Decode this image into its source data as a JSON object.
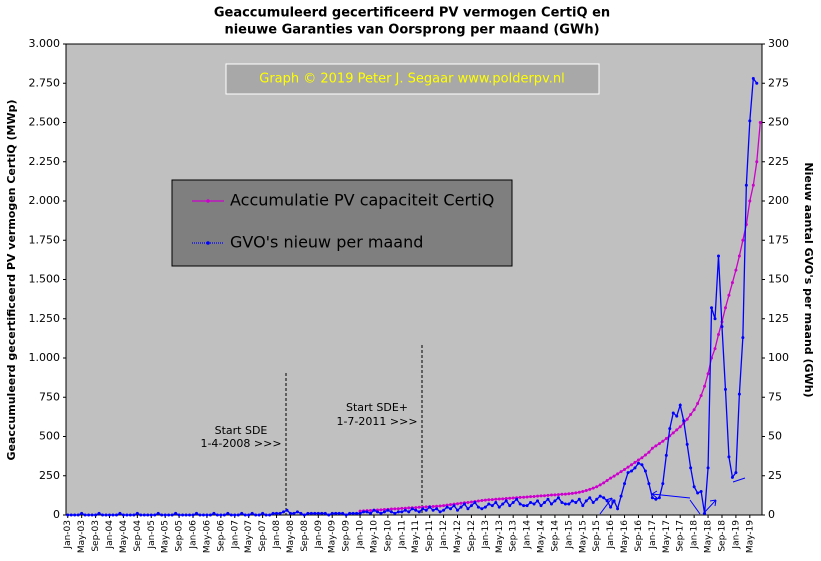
{
  "chart_data": {
    "type": "line",
    "title": "Geaccumuleerd gecertificeerd PV vermogen CertiQ en",
    "subtitle": "nieuwe Garanties van Oorsprong per maand (GWh)",
    "ylabel": "Geaccumuleerd gecertificeerd PV vermogen CertiQ (MWp)",
    "y2label": "Nieuw aantal GVO's per maand (GWh)",
    "credit": "Graph  © 2019  Peter J. Segaar   www.polderpv.nl",
    "annotations": [
      "Start SDE",
      "1-4-2008  >>>",
      "Start SDE+",
      "1-7-2011  >>>"
    ],
    "categories": [
      "Jan-03",
      null,
      null,
      null,
      "May-03",
      null,
      null,
      null,
      "Sep-03",
      null,
      null,
      null,
      "Jan-04",
      null,
      null,
      null,
      "May-04",
      null,
      null,
      null,
      "Sep-04",
      null,
      null,
      null,
      "Jan-05",
      null,
      null,
      null,
      "May-05",
      null,
      null,
      null,
      "Sep-05",
      null,
      null,
      null,
      "Jan-06",
      null,
      null,
      null,
      "May-06",
      null,
      null,
      null,
      "Sep-06",
      null,
      null,
      null,
      "Jan-07",
      null,
      null,
      null,
      "May-07",
      null,
      null,
      null,
      "Sep-07",
      null,
      null,
      null,
      "Jan-08",
      null,
      null,
      null,
      "May-08",
      null,
      null,
      null,
      "Sep-08",
      null,
      null,
      null,
      "Jan-09",
      null,
      null,
      null,
      "May-09",
      null,
      null,
      null,
      "Sep-09",
      null,
      null,
      null,
      "Jan-10",
      null,
      null,
      null,
      "May-10",
      null,
      null,
      null,
      "Sep-10",
      null,
      null,
      null,
      "Jan-11",
      null,
      null,
      null,
      "May-11",
      null,
      null,
      null,
      "Sep-11",
      null,
      null,
      null,
      "Jan-12",
      null,
      null,
      null,
      "May-12",
      null,
      null,
      null,
      "Sep-12",
      null,
      null,
      null,
      "Jan-13",
      null,
      null,
      null,
      "May-13",
      null,
      null,
      null,
      "Sep-13",
      null,
      null,
      null,
      "Jan-14",
      null,
      null,
      null,
      "May-14",
      null,
      null,
      null,
      "Sep-14",
      null,
      null,
      null,
      "Jan-15",
      null,
      null,
      null,
      "May-15",
      null,
      null,
      null,
      "Sep-15",
      null,
      null,
      null,
      "Jan-16",
      null,
      null,
      null,
      "May-16",
      null,
      null,
      null,
      "Sep-16",
      null,
      null,
      null,
      "Jan-17",
      null,
      null,
      null,
      "May-17",
      null,
      null,
      null,
      "Sep-17",
      null,
      null,
      null,
      "Jan-18",
      null,
      null,
      null,
      "May-18",
      null,
      null,
      null,
      "Sep-18",
      null,
      null,
      null,
      "Jan-19",
      null,
      null,
      null,
      "May-19",
      null,
      null,
      null
    ],
    "series": [
      {
        "name": "Accumulatie PV capaciteit CertiQ",
        "color": "#cc00cc",
        "values": [
          null,
          null,
          null,
          null,
          null,
          null,
          null,
          null,
          null,
          null,
          null,
          null,
          null,
          null,
          null,
          null,
          null,
          null,
          null,
          null,
          null,
          null,
          null,
          null,
          null,
          null,
          null,
          null,
          null,
          null,
          null,
          null,
          null,
          null,
          null,
          null,
          null,
          null,
          null,
          null,
          null,
          null,
          null,
          null,
          null,
          null,
          null,
          null,
          null,
          null,
          null,
          null,
          null,
          null,
          null,
          null,
          null,
          null,
          null,
          null,
          null,
          null,
          null,
          null,
          null,
          null,
          null,
          null,
          null,
          null,
          null,
          null,
          null,
          null,
          null,
          null,
          null,
          null,
          null,
          null,
          null,
          null,
          null,
          null,
          25,
          26,
          28,
          29,
          31,
          32,
          33,
          35,
          36,
          38,
          39,
          40,
          42,
          43,
          45,
          46,
          47,
          49,
          50,
          52,
          53,
          54,
          56,
          57,
          60,
          63,
          66,
          69,
          72,
          75,
          78,
          80,
          83,
          86,
          89,
          92,
          95,
          97,
          98,
          100,
          102,
          103,
          105,
          107,
          108,
          110,
          112,
          113,
          115,
          117,
          118,
          120,
          122,
          123,
          125,
          127,
          128,
          130,
          132,
          133,
          135,
          138,
          141,
          145,
          150,
          156,
          163,
          171,
          180,
          192,
          205,
          220,
          235,
          248,
          262,
          276,
          290,
          305,
          320,
          335,
          350,
          365,
          382,
          400,
          425,
          440,
          455,
          470,
          487,
          505,
          523,
          542,
          562,
          585,
          610,
          640,
          670,
          710,
          760,
          820,
          900,
          1000,
          1060,
          1150,
          1230,
          1320,
          1400,
          1480,
          1560,
          1650,
          1750,
          1850,
          2000,
          2100,
          2250,
          2500
        ]
      },
      {
        "name": "GVO's nieuw per maand",
        "color": "#0000ff",
        "axis": "y2",
        "values": [
          0,
          0,
          0,
          0,
          1,
          0,
          0,
          0,
          0,
          1,
          0,
          0,
          0,
          0,
          0,
          1,
          0,
          0,
          0,
          0,
          1,
          0,
          0,
          0,
          0,
          0,
          1,
          0,
          0,
          0,
          0,
          1,
          0,
          0,
          0,
          0,
          0,
          1,
          0,
          0,
          0,
          0,
          1,
          0,
          0,
          0,
          1,
          0,
          0,
          0,
          1,
          0,
          0,
          1,
          0,
          0,
          1,
          0,
          0,
          1,
          1,
          1,
          2,
          3,
          1,
          1,
          2,
          1,
          0,
          1,
          1,
          1,
          1,
          1,
          1,
          0,
          1,
          1,
          1,
          1,
          0,
          1,
          1,
          1,
          1,
          2,
          2,
          1,
          3,
          2,
          1,
          2,
          3,
          2,
          1,
          2,
          2,
          3,
          2,
          4,
          3,
          2,
          4,
          3,
          5,
          3,
          4,
          2,
          3,
          5,
          4,
          6,
          3,
          5,
          7,
          4,
          6,
          8,
          5,
          4,
          5,
          7,
          6,
          8,
          5,
          7,
          9,
          6,
          8,
          10,
          7,
          6,
          6,
          8,
          7,
          9,
          6,
          8,
          10,
          7,
          9,
          11,
          8,
          7,
          7,
          9,
          8,
          10,
          6,
          9,
          11,
          8,
          10,
          12,
          11,
          9,
          5,
          9,
          4,
          12,
          20,
          27,
          28,
          30,
          33,
          32,
          28,
          20,
          11,
          10,
          11,
          20,
          38,
          55,
          65,
          63,
          70,
          60,
          45,
          30,
          18,
          14,
          15,
          1,
          30,
          132,
          125,
          165,
          120,
          80,
          37,
          24,
          27,
          77,
          113,
          210,
          251,
          278,
          275,
          null
        ]
      }
    ],
    "ylim": [
      0,
      3000
    ],
    "yticks": [
      0,
      250,
      500,
      750,
      {
        "value": 1000,
        "label": "1.000"
      },
      {
        "value": 1250,
        "label": "1.250"
      },
      {
        "value": 1500,
        "label": "1.500"
      },
      {
        "value": 1750,
        "label": "1.750"
      },
      {
        "value": 2000,
        "label": "2.000"
      },
      {
        "value": 2250,
        "label": "2.250"
      },
      {
        "value": 2500,
        "label": "2.500"
      },
      {
        "value": 2750,
        "label": "2.750"
      },
      {
        "value": 3000,
        "label": "3.000"
      }
    ],
    "y2lim": [
      0,
      300
    ],
    "y2ticks": [
      0,
      25,
      50,
      75,
      100,
      125,
      150,
      175,
      200,
      225,
      250,
      275,
      300
    ],
    "grid": false
  }
}
